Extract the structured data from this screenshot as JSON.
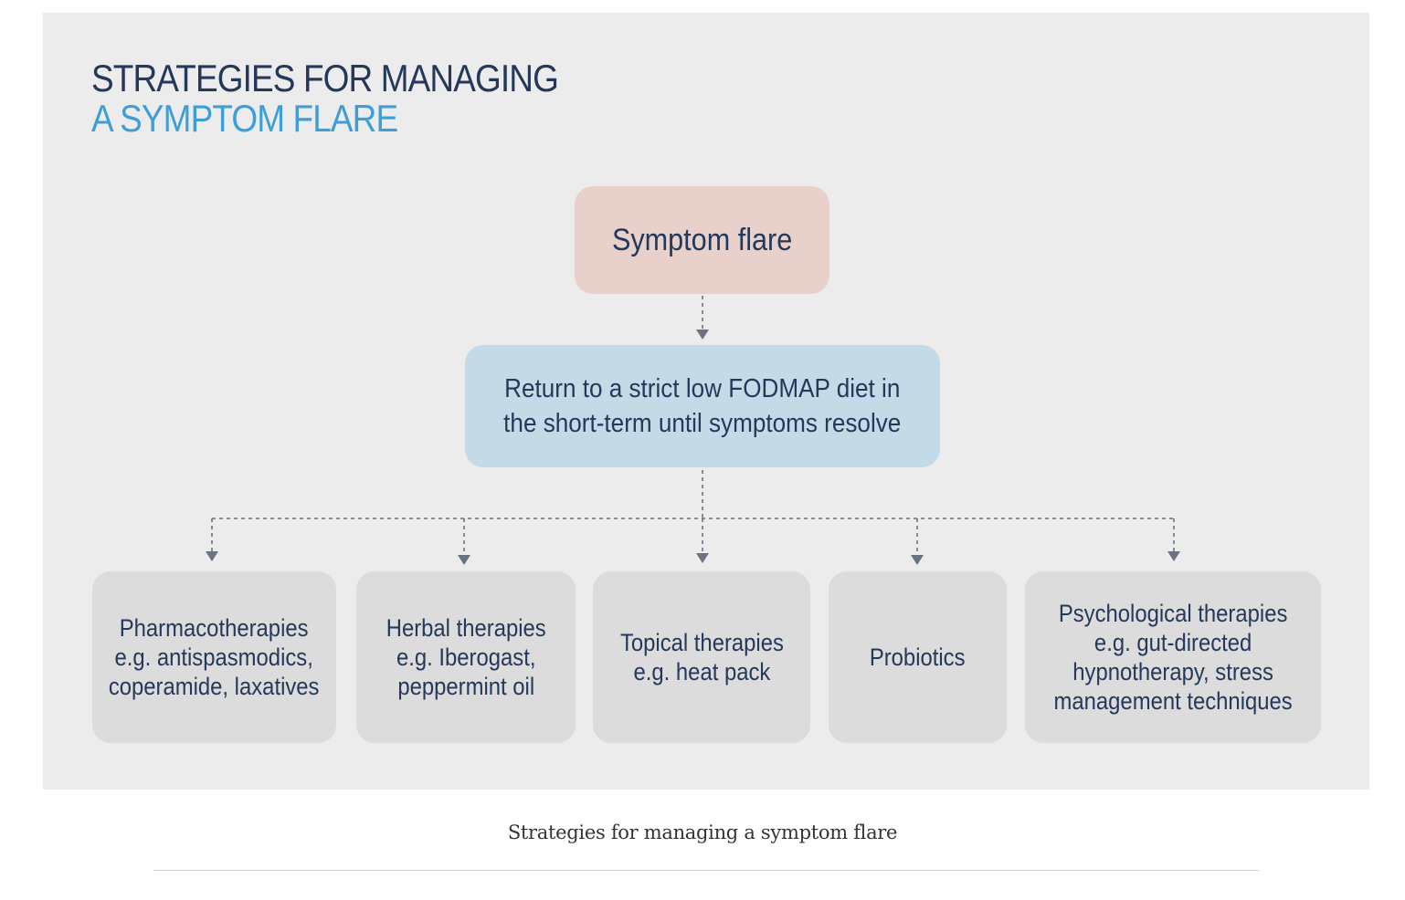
{
  "figure": {
    "title_line1": "STRATEGIES FOR MANAGING",
    "title_line2": "A SYMPTOM FLARE",
    "root": "Symptom flare",
    "step": "Return to a strict low FODMAP diet in\nthe short-term until symptoms resolve",
    "options": [
      "Pharmacotherapies\ne.g. antispasmodics,\ncoperamide, laxatives",
      "Herbal therapies\ne.g. Iberogast,\npeppermint oil",
      "Topical therapies\ne.g. heat pack",
      "Probiotics",
      "Psychological therapies\ne.g. gut-directed\nhypnotherapy, stress\nmanagement techniques"
    ]
  },
  "caption": "Strategies for managing a symptom flare",
  "colors": {
    "panel_background": "#ececed",
    "title_dark": "#24385a",
    "title_accent": "#3f9ed6",
    "root_box": "#e8d1cb",
    "step_box": "#c4dbe7",
    "option_box": "#dcdcdd",
    "connector": "#6b7282"
  }
}
